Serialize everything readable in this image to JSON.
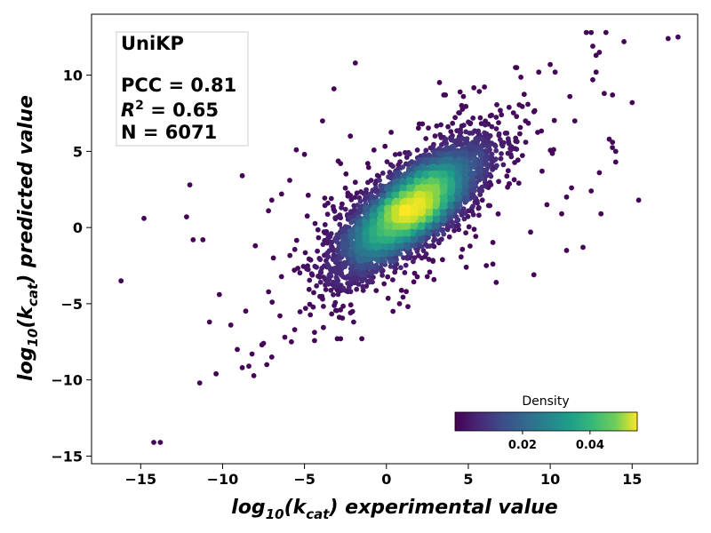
{
  "chart_data": {
    "type": "scatter",
    "title": "",
    "xlabel_parts": {
      "pre": "log",
      "sub1": "10",
      "mid": "(k",
      "sub2": "cat",
      "post": ") experimental value"
    },
    "ylabel_parts": {
      "pre": "log",
      "sub1": "10",
      "mid": "(k",
      "sub2": "cat",
      "post": ") predicted value"
    },
    "xlim": [
      -18,
      19
    ],
    "ylim": [
      -15.5,
      14
    ],
    "xticks": [
      -15,
      -10,
      -5,
      0,
      5,
      10,
      15
    ],
    "yticks": [
      -15,
      -10,
      -5,
      0,
      5,
      10
    ],
    "xtick_labels": [
      "−15",
      "−10",
      "−5",
      "0",
      "5",
      "10",
      "15"
    ],
    "ytick_labels": [
      "−15",
      "−10",
      "−5",
      "0",
      "5",
      "10"
    ],
    "grid": false,
    "annotation": {
      "model": "UniKP",
      "pcc": "PCC = 0.81",
      "r2_prefix": "R",
      "r2_sup": "2",
      "r2_value": " = 0.65",
      "n": "N = 6071"
    },
    "colorbar": {
      "title": "Density",
      "colormap": "viridis",
      "range": [
        0,
        0.054
      ],
      "ticks": [
        0.02,
        0.04
      ],
      "tick_labels": [
        "0.02",
        "0.04"
      ],
      "placement": "lower-right"
    },
    "n_points": 6071,
    "correlation": 0.81,
    "trend_center": [
      1.5,
      1.3
    ],
    "outliers": [
      [
        -16.2,
        -3.5
      ],
      [
        -14.8,
        0.6
      ],
      [
        -14.2,
        -14.1
      ],
      [
        -13.8,
        -14.1
      ],
      [
        -12.2,
        0.7
      ],
      [
        -12.0,
        2.8
      ],
      [
        -11.8,
        -0.8
      ],
      [
        -11.4,
        -10.2
      ],
      [
        -11.2,
        -0.8
      ],
      [
        -10.8,
        -6.2
      ],
      [
        -10.4,
        -9.6
      ],
      [
        -10.2,
        -4.4
      ],
      [
        -9.5,
        -6.4
      ],
      [
        -9.1,
        -8.0
      ],
      [
        -8.8,
        -9.2
      ],
      [
        -8.4,
        -9.1
      ],
      [
        -8.2,
        -8.3
      ],
      [
        -8.0,
        -1.2
      ],
      [
        -7.6,
        -7.7
      ],
      [
        -7.5,
        -7.6
      ],
      [
        -7.3,
        -9.0
      ],
      [
        -7.0,
        -8.5
      ],
      [
        -6.9,
        -2.0
      ],
      [
        -6.5,
        -5.8
      ],
      [
        -6.2,
        -7.2
      ],
      [
        -5.8,
        -7.5
      ],
      [
        -5.6,
        -6.7
      ],
      [
        -8.8,
        3.4
      ],
      [
        -7.2,
        1.1
      ],
      [
        -7.0,
        1.8
      ],
      [
        -6.4,
        2.2
      ],
      [
        -5.9,
        3.1
      ],
      [
        -5.5,
        5.1
      ],
      [
        -5.0,
        4.8
      ],
      [
        -3.9,
        7.0
      ],
      [
        -3.2,
        9.1
      ],
      [
        -2.8,
        4.2
      ],
      [
        -2.2,
        6.0
      ],
      [
        -1.9,
        10.8
      ],
      [
        -3.0,
        -7.3
      ],
      [
        -2.8,
        -7.3
      ],
      [
        -2.0,
        -6.2
      ],
      [
        -1.5,
        -7.3
      ],
      [
        0.8,
        -5.0
      ],
      [
        0.4,
        -5.5
      ],
      [
        2.0,
        4.6
      ],
      [
        2.2,
        6.8
      ],
      [
        3.5,
        8.7
      ],
      [
        4.5,
        8.9
      ],
      [
        4.7,
        8.6
      ],
      [
        6.1,
        -2.5
      ],
      [
        6.5,
        -2.4
      ],
      [
        6.7,
        -3.6
      ],
      [
        10.0,
        10.7
      ],
      [
        11.2,
        8.6
      ],
      [
        11.5,
        7.0
      ],
      [
        12.2,
        12.8
      ],
      [
        12.5,
        12.8
      ],
      [
        12.6,
        11.9
      ],
      [
        12.8,
        11.3
      ],
      [
        13.0,
        11.5
      ],
      [
        12.8,
        10.2
      ],
      [
        12.6,
        9.7
      ],
      [
        13.4,
        12.8
      ],
      [
        13.3,
        8.8
      ],
      [
        13.8,
        8.7
      ],
      [
        13.6,
        5.8
      ],
      [
        13.8,
        5.6
      ],
      [
        14.0,
        5.0
      ],
      [
        14.5,
        12.2
      ],
      [
        15.4,
        1.8
      ],
      [
        12.5,
        2.4
      ],
      [
        13.1,
        0.9
      ],
      [
        17.2,
        12.4
      ],
      [
        17.8,
        12.5
      ],
      [
        9.3,
        10.2
      ],
      [
        8.5,
        5.6
      ],
      [
        9.5,
        3.7
      ],
      [
        9.8,
        1.5
      ],
      [
        10.7,
        0.9
      ],
      [
        11.0,
        -1.5
      ],
      [
        12.0,
        -1.3
      ],
      [
        8.8,
        -0.3
      ],
      [
        9.0,
        -3.1
      ],
      [
        11.3,
        2.6
      ],
      [
        15.0,
        8.2
      ],
      [
        14.0,
        4.3
      ],
      [
        13.0,
        3.6
      ],
      [
        11.0,
        2.0
      ],
      [
        10.3,
        10.2
      ]
    ]
  }
}
